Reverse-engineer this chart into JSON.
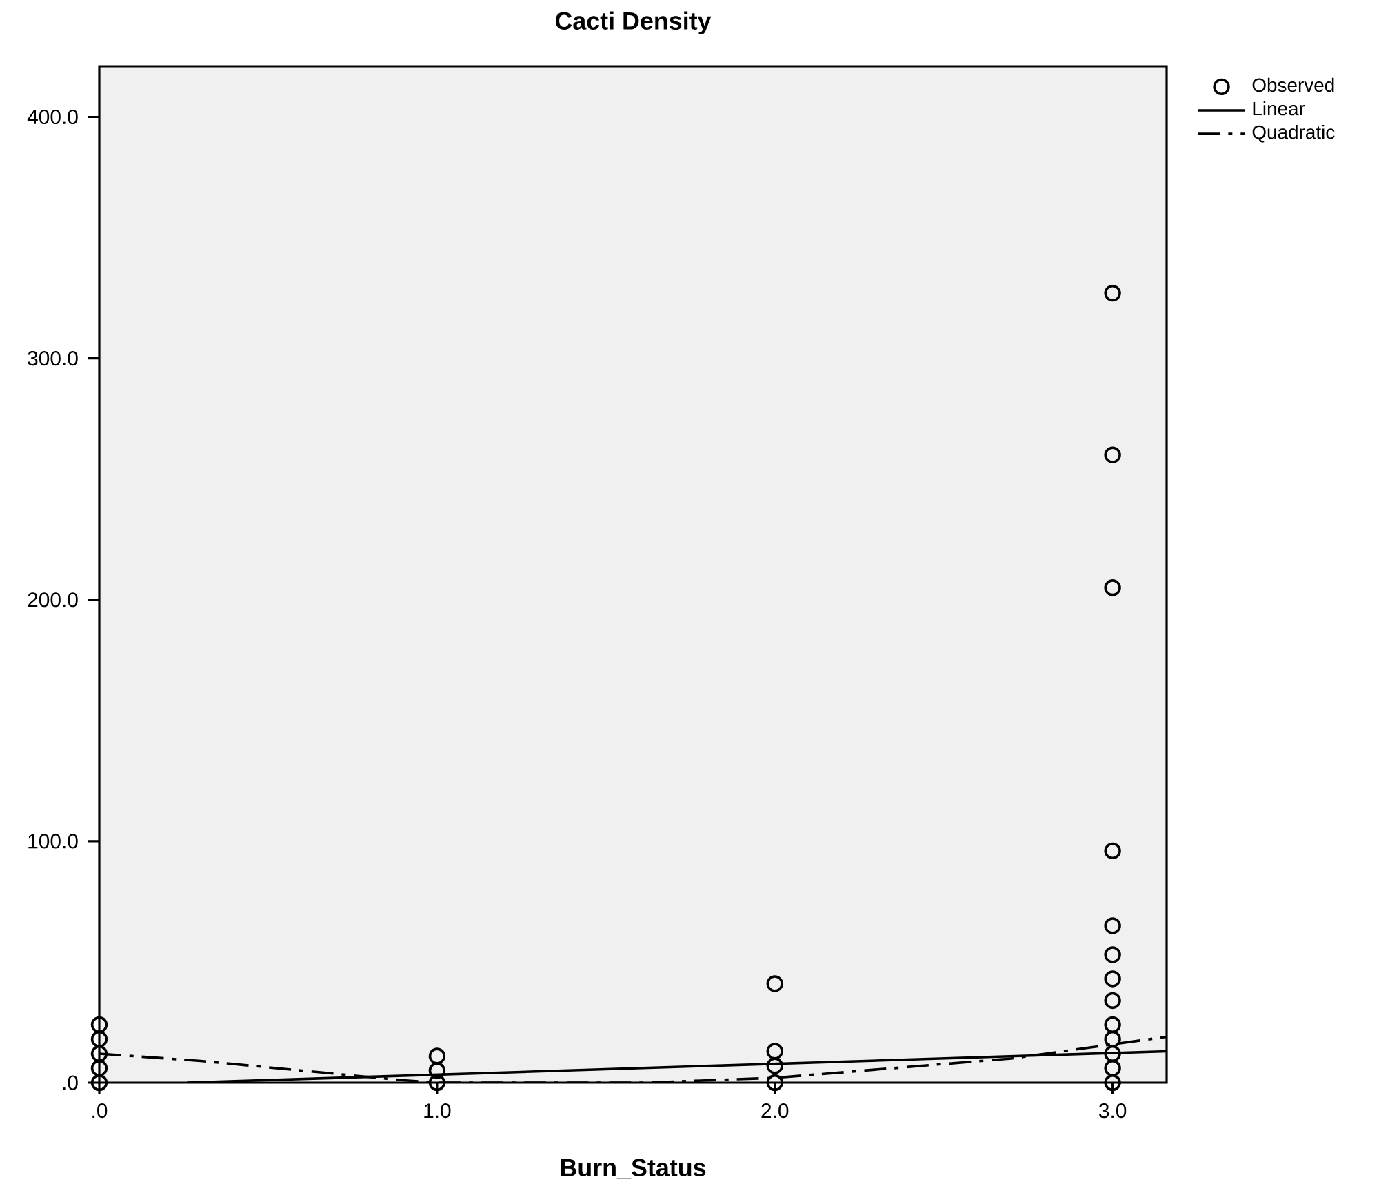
{
  "chart_data": {
    "type": "scatter",
    "title": "Cacti Density",
    "xlabel": "Burn_Status",
    "xlim": [
      0,
      3.16
    ],
    "ylim": [
      0,
      421
    ],
    "xticks": [
      {
        "value": 0,
        "label": ".0"
      },
      {
        "value": 1,
        "label": "1.0"
      },
      {
        "value": 2,
        "label": "2.0"
      },
      {
        "value": 3,
        "label": "3.0"
      }
    ],
    "yticks": [
      {
        "value": 0,
        "label": ".0"
      },
      {
        "value": 100,
        "label": "100.0"
      },
      {
        "value": 200,
        "label": "200.0"
      },
      {
        "value": 300,
        "label": "300.0"
      },
      {
        "value": 400,
        "label": "400.0"
      }
    ],
    "legend": "top right",
    "grid": false,
    "series": [
      {
        "name": "Observed",
        "marker": "circle",
        "color": "#000000",
        "x": [
          0,
          0,
          0,
          0,
          0,
          1,
          1,
          1,
          2,
          2,
          2,
          2,
          3,
          3,
          3,
          3,
          3,
          3,
          3,
          3,
          3,
          3,
          3,
          3,
          3
        ],
        "values": [
          0,
          6,
          12,
          18,
          24,
          0,
          5,
          11,
          0,
          7,
          13,
          41,
          0,
          6,
          12,
          18,
          24,
          34,
          43,
          53,
          65,
          96,
          205,
          260,
          327
        ]
      },
      {
        "name": "Linear",
        "type": "line",
        "line_style": "solid",
        "color": "#000000",
        "x": [
          0.26,
          3.16
        ],
        "values": [
          0,
          13
        ]
      },
      {
        "name": "Quadratic",
        "type": "line",
        "line_style": "dashdot",
        "color": "#000000",
        "x": [
          0,
          0.3,
          0.6,
          0.9,
          1.0,
          1.62,
          2.0,
          2.35,
          2.7,
          3.16
        ],
        "values": [
          12,
          9,
          5,
          1,
          0,
          0,
          2,
          6,
          10,
          19
        ]
      }
    ]
  }
}
